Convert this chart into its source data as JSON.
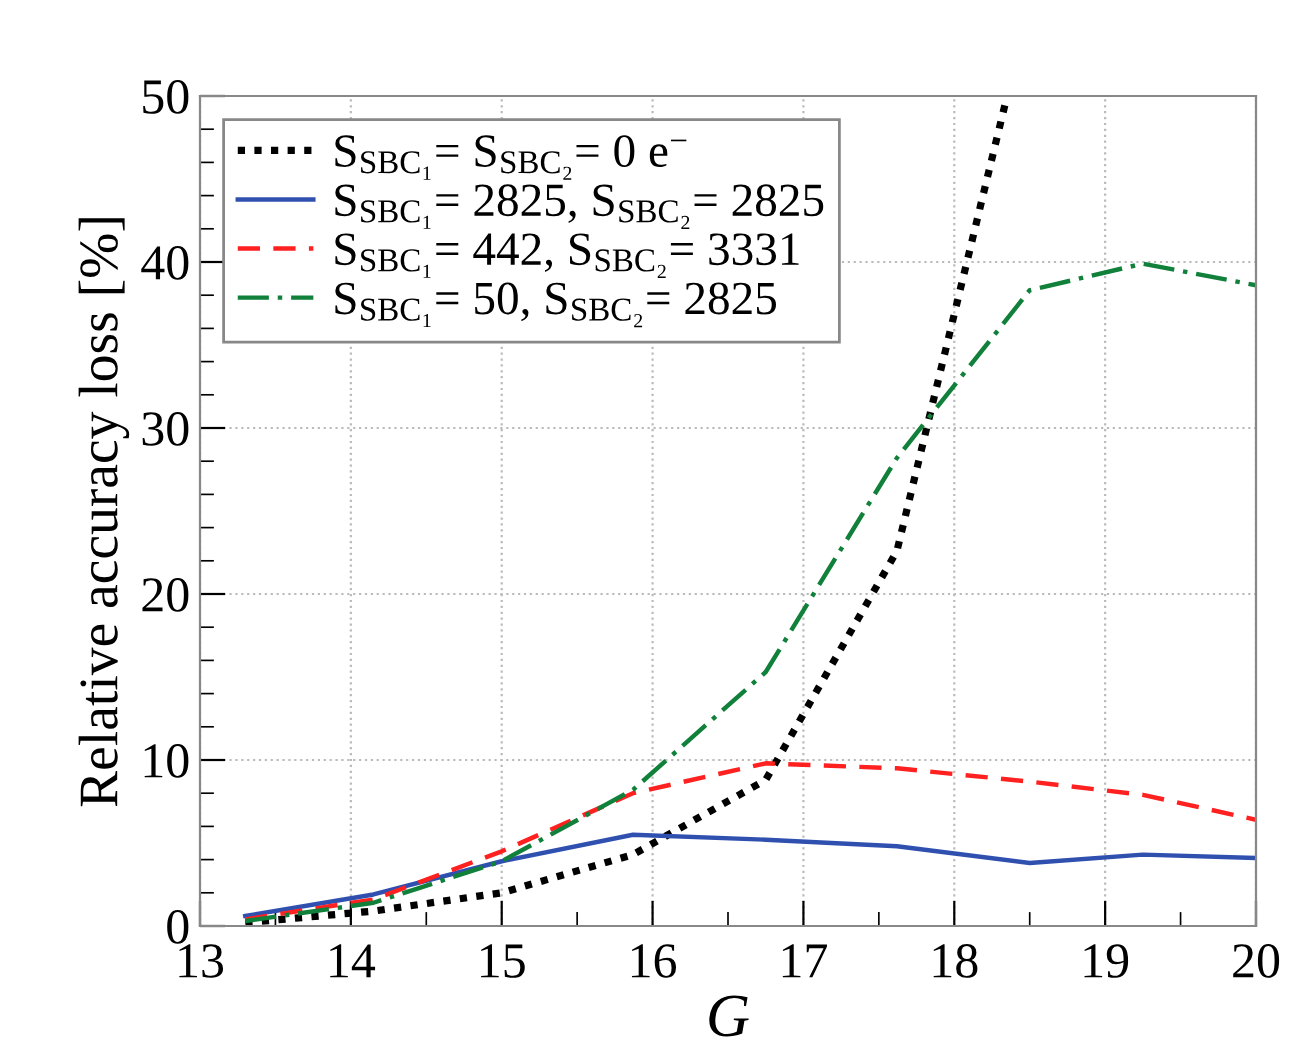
{
  "chart_data": {
    "type": "line",
    "xlabel": "G",
    "ylabel": "Relative accuracy loss [%]",
    "xlim": [
      13,
      20
    ],
    "ylim": [
      0,
      50
    ],
    "xticks": [
      13,
      14,
      15,
      16,
      17,
      18,
      19,
      20
    ],
    "yticks": [
      0,
      10,
      20,
      30,
      40,
      50
    ],
    "grid": true,
    "legend": "top left",
    "series": [
      {
        "name": "S$_{SBC₁}$= S$_{SBC₂}$= 0 e$^{−}$",
        "color": "#000000",
        "line_style": "dotted",
        "x": [
          13.3,
          14.15,
          15.0,
          15.87,
          16.75,
          17.62,
          18.35
        ],
        "values": [
          0.2,
          0.9,
          2.0,
          4.3,
          8.8,
          22.6,
          50
        ]
      },
      {
        "name": "S$_{SBC₁}$= 2825, S$_{SBC₂}$= 2825",
        "color": "#3050b0",
        "line_style": "solid",
        "x": [
          13.3,
          14.15,
          15.0,
          15.87,
          16.75,
          17.62,
          18.5,
          19.25,
          20
        ],
        "values": [
          0.6,
          1.9,
          3.9,
          5.5,
          5.2,
          4.8,
          3.8,
          4.3,
          4.1
        ]
      },
      {
        "name": "S$_{SBC₁}$= 442, S$_{SBC₂}$= 3331",
        "color": "#ff2020",
        "line_style": "dashed",
        "x": [
          13.3,
          14.15,
          15.0,
          15.87,
          16.75,
          17.62,
          18.5,
          19.25,
          20
        ],
        "values": [
          0.4,
          1.6,
          4.5,
          8.0,
          9.8,
          9.5,
          8.7,
          7.9,
          6.4
        ]
      },
      {
        "name": "S$_{SBC₁}$= 50, S$_{SBC₂}$= 2825",
        "color": "#10803a",
        "line_style": "dashdot",
        "x": [
          13.3,
          14.15,
          15.0,
          15.87,
          16.75,
          17.62,
          18.5,
          19.25,
          20
        ],
        "values": [
          0.3,
          1.4,
          3.9,
          8.2,
          15.3,
          28.2,
          38.3,
          39.9,
          38.6
        ]
      }
    ]
  }
}
